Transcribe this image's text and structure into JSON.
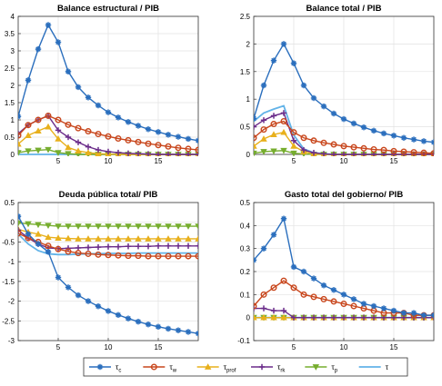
{
  "chart_data": [
    {
      "type": "line",
      "title": "Balance estructural / PIB",
      "xlim": [
        1,
        19
      ],
      "ylim": [
        0,
        4
      ],
      "xticks": [
        5,
        10,
        15
      ],
      "yticks": [
        0,
        0.5,
        1,
        1.5,
        2,
        2.5,
        3,
        3.5,
        4
      ],
      "ytick_labels": [
        "0",
        "0.5",
        "1",
        "1.5",
        "2",
        "2.5",
        "3",
        "3.5",
        "4"
      ],
      "series": [
        {
          "key": "tau_c",
          "values": [
            1.1,
            2.15,
            3.05,
            3.75,
            3.25,
            2.4,
            1.95,
            1.65,
            1.42,
            1.22,
            1.07,
            0.94,
            0.83,
            0.73,
            0.65,
            0.57,
            0.51,
            0.45,
            0.4
          ]
        },
        {
          "key": "tau_w",
          "values": [
            0.55,
            0.85,
            1.0,
            1.12,
            1.0,
            0.86,
            0.76,
            0.67,
            0.59,
            0.52,
            0.46,
            0.41,
            0.36,
            0.31,
            0.27,
            0.23,
            0.19,
            0.16,
            0.13
          ]
        },
        {
          "key": "tau_prof",
          "values": [
            0.3,
            0.55,
            0.68,
            0.8,
            0.45,
            0.2,
            0.1,
            0.05,
            0.02,
            0.01,
            0,
            0,
            0,
            0,
            0,
            0,
            0,
            0,
            0
          ]
        },
        {
          "key": "tau_rk",
          "values": [
            0.6,
            0.85,
            1.0,
            1.12,
            0.7,
            0.5,
            0.35,
            0.22,
            0.13,
            0.08,
            0.05,
            0.03,
            0.02,
            0.01,
            0,
            0,
            0,
            0,
            0
          ]
        },
        {
          "key": "tau_p",
          "values": [
            0.05,
            0.1,
            0.12,
            0.14,
            0.05,
            0.02,
            0,
            0,
            0,
            0,
            0,
            0,
            0,
            0,
            0,
            0,
            0,
            0,
            0
          ]
        },
        {
          "key": "tau",
          "values": [
            0,
            0,
            0,
            0,
            0,
            0,
            0,
            0,
            0,
            0,
            0,
            0,
            0,
            0,
            0,
            0,
            0,
            0,
            0
          ]
        }
      ]
    },
    {
      "type": "line",
      "title": "Balance total / PIB",
      "xlim": [
        1,
        19
      ],
      "ylim": [
        0,
        2.5
      ],
      "xticks": [
        5,
        10,
        15
      ],
      "yticks": [
        0,
        0.5,
        1,
        1.5,
        2,
        2.5
      ],
      "ytick_labels": [
        "0",
        "0.5",
        "1",
        "1.5",
        "2",
        "2.5"
      ],
      "series": [
        {
          "key": "tau_c",
          "values": [
            0.65,
            1.25,
            1.7,
            2.0,
            1.65,
            1.25,
            1.02,
            0.87,
            0.74,
            0.64,
            0.56,
            0.49,
            0.43,
            0.38,
            0.34,
            0.3,
            0.27,
            0.24,
            0.22
          ]
        },
        {
          "key": "tau_w",
          "values": [
            0.3,
            0.45,
            0.55,
            0.6,
            0.4,
            0.3,
            0.25,
            0.21,
            0.18,
            0.15,
            0.13,
            0.11,
            0.09,
            0.08,
            0.06,
            0.05,
            0.04,
            0.03,
            0.02
          ]
        },
        {
          "key": "tau_prof",
          "values": [
            0.15,
            0.28,
            0.36,
            0.4,
            0.15,
            0.05,
            0.01,
            0,
            0,
            0,
            0,
            0,
            0,
            0,
            0,
            0,
            0,
            0,
            0
          ]
        },
        {
          "key": "tau_rk",
          "values": [
            0.5,
            0.62,
            0.7,
            0.75,
            0.25,
            0.08,
            0.03,
            0.01,
            0,
            0,
            0,
            0,
            0,
            0,
            0,
            0,
            0,
            0,
            0
          ]
        },
        {
          "key": "tau_p",
          "values": [
            0.02,
            0.05,
            0.06,
            0.07,
            0.02,
            0.01,
            0,
            0,
            0,
            0,
            0,
            0,
            0,
            0,
            0,
            0,
            0,
            0,
            0
          ]
        },
        {
          "key": "tau",
          "values": [
            0.6,
            0.75,
            0.82,
            0.88,
            0.35,
            0.1,
            0.03,
            0.01,
            0,
            0,
            0,
            0,
            0,
            0,
            0,
            0,
            0,
            0,
            0
          ]
        }
      ]
    },
    {
      "type": "line",
      "title": "Deuda pública total/ PIB",
      "xlim": [
        1,
        19
      ],
      "ylim": [
        -3,
        0.5
      ],
      "xticks": [
        5,
        10,
        15
      ],
      "yticks": [
        -3,
        -2.5,
        -2,
        -1.5,
        -1,
        -0.5,
        0,
        0.5
      ],
      "ytick_labels": [
        "-3",
        "-2.5",
        "-2",
        "-1.5",
        "-1",
        "-0.5",
        "0",
        "0.5"
      ],
      "series": [
        {
          "key": "tau_c",
          "values": [
            0.15,
            -0.3,
            -0.55,
            -0.75,
            -1.4,
            -1.65,
            -1.85,
            -2.0,
            -2.13,
            -2.25,
            -2.35,
            -2.44,
            -2.52,
            -2.59,
            -2.65,
            -2.7,
            -2.74,
            -2.78,
            -2.82
          ]
        },
        {
          "key": "tau_w",
          "values": [
            -0.28,
            -0.4,
            -0.5,
            -0.6,
            -0.68,
            -0.74,
            -0.78,
            -0.8,
            -0.82,
            -0.83,
            -0.84,
            -0.85,
            -0.85,
            -0.86,
            -0.86,
            -0.86,
            -0.86,
            -0.86,
            -0.86
          ]
        },
        {
          "key": "tau_prof",
          "values": [
            -0.18,
            -0.25,
            -0.3,
            -0.38,
            -0.4,
            -0.41,
            -0.42,
            -0.42,
            -0.42,
            -0.42,
            -0.42,
            -0.42,
            -0.42,
            -0.42,
            -0.42,
            -0.42,
            -0.42,
            -0.42,
            -0.42
          ]
        },
        {
          "key": "tau_rk",
          "values": [
            -0.2,
            -0.4,
            -0.55,
            -0.65,
            -0.67,
            -0.66,
            -0.65,
            -0.64,
            -0.63,
            -0.62,
            -0.62,
            -0.61,
            -0.61,
            -0.61,
            -0.6,
            -0.6,
            -0.6,
            -0.6,
            -0.6
          ]
        },
        {
          "key": "tau_p",
          "values": [
            -0.02,
            -0.04,
            -0.06,
            -0.08,
            -0.1,
            -0.1,
            -0.1,
            -0.1,
            -0.1,
            -0.1,
            -0.1,
            -0.1,
            -0.1,
            -0.1,
            -0.1,
            -0.1,
            -0.1,
            -0.1,
            -0.1
          ]
        },
        {
          "key": "tau",
          "values": [
            -0.3,
            -0.55,
            -0.72,
            -0.8,
            -0.82,
            -0.82,
            -0.81,
            -0.8,
            -0.8,
            -0.79,
            -0.79,
            -0.79,
            -0.78,
            -0.78,
            -0.78,
            -0.78,
            -0.78,
            -0.78,
            -0.78
          ]
        }
      ]
    },
    {
      "type": "line",
      "title": "Gasto total del gobierno/ PIB",
      "xlim": [
        1,
        19
      ],
      "ylim": [
        -0.1,
        0.5
      ],
      "xticks": [
        5,
        10,
        15
      ],
      "yticks": [
        -0.1,
        0,
        0.1,
        0.2,
        0.3,
        0.4,
        0.5
      ],
      "ytick_labels": [
        "-0.1",
        "0",
        "0.1",
        "0.2",
        "0.3",
        "0.4",
        "0.5"
      ],
      "series": [
        {
          "key": "tau_c",
          "values": [
            0.25,
            0.3,
            0.36,
            0.43,
            0.22,
            0.2,
            0.17,
            0.14,
            0.12,
            0.1,
            0.08,
            0.06,
            0.05,
            0.04,
            0.03,
            0.02,
            0.02,
            0.01,
            0.01
          ]
        },
        {
          "key": "tau_w",
          "values": [
            0.05,
            0.1,
            0.13,
            0.16,
            0.13,
            0.1,
            0.09,
            0.08,
            0.07,
            0.06,
            0.05,
            0.04,
            0.03,
            0.02,
            0.02,
            0.02,
            0.01,
            0.01,
            0.01
          ]
        },
        {
          "key": "tau_prof",
          "values": [
            0,
            0,
            0,
            0,
            0,
            0,
            0,
            0,
            0,
            0,
            0,
            0,
            0,
            0,
            0,
            0,
            0,
            0,
            0
          ]
        },
        {
          "key": "tau_rk",
          "values": [
            0.04,
            0.04,
            0.03,
            0.03,
            0,
            0,
            0,
            0,
            0,
            0,
            0,
            0,
            0,
            0,
            0,
            0,
            0,
            0,
            0
          ]
        },
        {
          "key": "tau_p",
          "values": [
            0,
            0,
            0,
            0,
            0,
            0,
            0,
            0,
            0,
            0,
            0,
            0,
            0,
            0,
            0,
            0,
            0,
            0,
            0
          ]
        },
        {
          "key": "tau",
          "values": [
            0,
            0,
            0,
            0,
            0,
            0,
            0,
            0,
            0,
            0,
            0,
            0,
            0,
            0,
            0,
            0,
            0,
            0,
            0
          ]
        }
      ]
    }
  ],
  "series_styles": {
    "tau_c": {
      "color": "#2a6ebd",
      "marker": "asterisk"
    },
    "tau_w": {
      "color": "#c8461c",
      "marker": "circle"
    },
    "tau_prof": {
      "color": "#e8b01c",
      "marker": "triangle-up"
    },
    "tau_rk": {
      "color": "#6b2c8a",
      "marker": "plus"
    },
    "tau_p": {
      "color": "#76ad2e",
      "marker": "triangle-down"
    },
    "tau": {
      "color": "#62b3e8",
      "marker": "none"
    }
  },
  "legend": {
    "placement": "bottom",
    "items": [
      {
        "key": "tau_c",
        "symbol": "τ",
        "sub": "c"
      },
      {
        "key": "tau_w",
        "symbol": "τ",
        "sub": "w"
      },
      {
        "key": "tau_prof",
        "symbol": "τ",
        "sub": "prof"
      },
      {
        "key": "tau_rk",
        "symbol": "τ",
        "sub": "rk"
      },
      {
        "key": "tau_p",
        "symbol": "τ",
        "sub": "p"
      },
      {
        "key": "tau",
        "symbol": "τ",
        "sub": ""
      }
    ]
  }
}
